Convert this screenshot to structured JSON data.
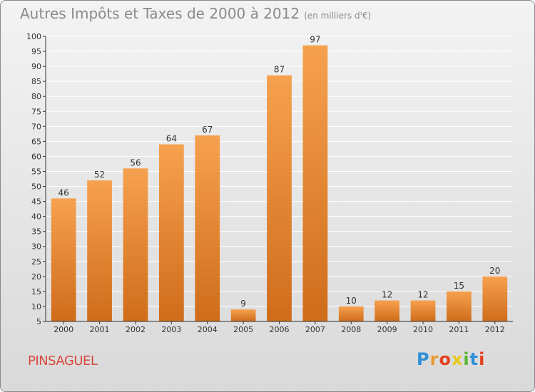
{
  "title": "Autres Impôts et Taxes de 2000 à 2012",
  "unit": "(en milliers d'€)",
  "commune": "PINSAGUEL",
  "logo": {
    "text": "Proxiti",
    "colors": [
      "#2e8fd6",
      "#e89a2c",
      "#e3411f",
      "#e8c91e",
      "#59b530",
      "#2e8fd6",
      "#e3411f"
    ]
  },
  "chart_data": {
    "type": "bar",
    "categories": [
      "2000",
      "2001",
      "2002",
      "2003",
      "2004",
      "2005",
      "2006",
      "2007",
      "2008",
      "2009",
      "2010",
      "2011",
      "2012"
    ],
    "values": [
      46,
      52,
      56,
      64,
      67,
      9,
      87,
      97,
      10,
      12,
      12,
      15,
      20
    ],
    "ylim": [
      5,
      100
    ],
    "yticks": [
      5,
      10,
      15,
      20,
      25,
      30,
      35,
      40,
      45,
      50,
      55,
      60,
      65,
      70,
      75,
      80,
      85,
      90,
      95,
      100
    ],
    "grid": true,
    "colors": {
      "bar_light": "#f6a14f",
      "bar_dark": "#cf6c1a",
      "grid": "#ffffff",
      "axis": "#333333"
    }
  }
}
